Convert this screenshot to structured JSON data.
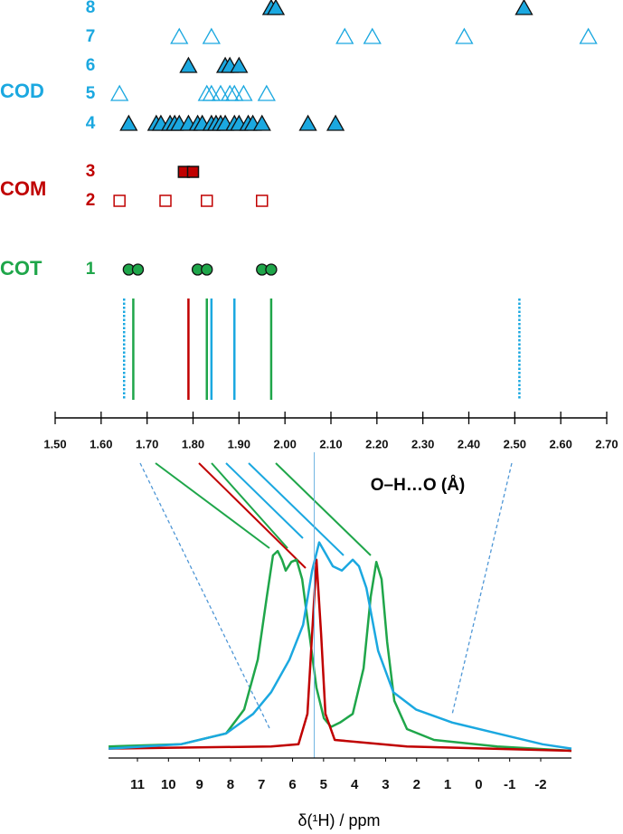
{
  "chart_data": [
    {
      "type": "scatter",
      "xlabel": "O–H…O (Å)",
      "xlim": [
        1.5,
        2.7
      ],
      "xticks": [
        {
          "value": 1.5,
          "label": "1.50"
        },
        {
          "value": 1.6,
          "label": "1.60"
        },
        {
          "value": 1.7,
          "label": "1.70"
        },
        {
          "value": 1.8,
          "label": "1.80"
        },
        {
          "value": 1.9,
          "label": "1.90"
        },
        {
          "value": 2.0,
          "label": "2.00"
        },
        {
          "value": 2.1,
          "label": "2.10"
        },
        {
          "value": 2.2,
          "label": "2.20"
        },
        {
          "value": 2.3,
          "label": "2.30"
        },
        {
          "value": 2.4,
          "label": "2.40"
        },
        {
          "value": 2.5,
          "label": "2.50"
        },
        {
          "value": 2.6,
          "label": "2.60"
        },
        {
          "value": 2.7,
          "label": "2.70"
        }
      ],
      "groups": [
        {
          "name": "COD",
          "color": "#1ba8e0",
          "marker": "triangle",
          "series": [
            {
              "name": "8",
              "filled": true,
              "values": [
                1.97,
                1.98,
                2.52
              ]
            },
            {
              "name": "7",
              "filled": false,
              "values": [
                1.77,
                1.84,
                2.13,
                2.19,
                2.39,
                2.66
              ]
            },
            {
              "name": "6",
              "filled": true,
              "values": [
                1.79,
                1.87,
                1.88,
                1.9
              ]
            },
            {
              "name": "5",
              "filled": false,
              "values": [
                1.64,
                1.83,
                1.84,
                1.86,
                1.88,
                1.89,
                1.91,
                1.96
              ]
            },
            {
              "name": "4",
              "filled": true,
              "values": [
                1.66,
                1.72,
                1.73,
                1.75,
                1.76,
                1.77,
                1.79,
                1.81,
                1.82,
                1.84,
                1.85,
                1.86,
                1.87,
                1.89,
                1.9,
                1.92,
                1.93,
                1.95,
                2.05,
                2.11
              ]
            }
          ]
        },
        {
          "name": "COM",
          "color": "#c00000",
          "marker": "square",
          "series": [
            {
              "name": "3",
              "filled": true,
              "values": [
                1.78,
                1.8
              ]
            },
            {
              "name": "2",
              "filled": false,
              "values": [
                1.64,
                1.74,
                1.83,
                1.95
              ]
            }
          ]
        },
        {
          "name": "COT",
          "color": "#1fa64a",
          "marker": "circle",
          "series": [
            {
              "name": "1",
              "filled": true,
              "values": [
                1.66,
                1.68,
                1.81,
                1.83,
                1.95,
                1.97
              ]
            }
          ]
        }
      ],
      "lines": [
        {
          "value": 1.65,
          "color": "#1ba8e0",
          "dashed": true
        },
        {
          "value": 1.67,
          "color": "#1fa64a",
          "dashed": false
        },
        {
          "value": 1.79,
          "color": "#c00000",
          "dashed": false
        },
        {
          "value": 1.83,
          "color": "#1fa64a",
          "dashed": false
        },
        {
          "value": 1.84,
          "color": "#1ba8e0",
          "dashed": false
        },
        {
          "value": 1.89,
          "color": "#1ba8e0",
          "dashed": false
        },
        {
          "value": 1.97,
          "color": "#1fa64a",
          "dashed": false
        },
        {
          "value": 2.51,
          "color": "#1ba8e0",
          "dashed": true
        }
      ]
    },
    {
      "type": "line",
      "xlabel": "δ(¹H) / ppm",
      "xlim": [
        12,
        -3
      ],
      "xticks": [
        11,
        10,
        9,
        8,
        7,
        6,
        5,
        4,
        3,
        2,
        1,
        0,
        -1,
        -2
      ],
      "ylim": [
        0,
        1
      ],
      "vline": 5.3,
      "vline_color": "#6fb3e0",
      "series": [
        {
          "color": "#1fa64a",
          "x": [
            11.93,
            9.6,
            8.14,
            7.56,
            7.12,
            6.83,
            6.63,
            6.48,
            6.34,
            6.22,
            6.04,
            5.87,
            5.69,
            5.46,
            5.23,
            4.99,
            4.76,
            4.47,
            4.06,
            3.71,
            3.48,
            3.3,
            3.13,
            2.95,
            2.72,
            2.31,
            1.44,
            -0.6,
            -2.99
          ],
          "values": [
            0.02,
            0.03,
            0.08,
            0.19,
            0.42,
            0.71,
            0.9,
            0.92,
            0.88,
            0.83,
            0.87,
            0.88,
            0.79,
            0.54,
            0.29,
            0.15,
            0.11,
            0.13,
            0.17,
            0.38,
            0.71,
            0.87,
            0.79,
            0.5,
            0.23,
            0.1,
            0.05,
            0.02,
            0.0
          ]
        },
        {
          "color": "#c00000",
          "x": [
            11.93,
            6.69,
            5.81,
            5.52,
            5.37,
            5.23,
            5.08,
            4.94,
            4.64,
            2.31,
            -2.99
          ],
          "values": [
            0.01,
            0.02,
            0.03,
            0.17,
            0.54,
            0.88,
            0.54,
            0.17,
            0.05,
            0.02,
            0.0
          ]
        },
        {
          "color": "#1ba8e0",
          "x": [
            11.93,
            9.6,
            8.14,
            7.27,
            6.69,
            6.1,
            5.66,
            5.37,
            5.14,
            4.94,
            4.7,
            4.41,
            4.06,
            3.86,
            3.62,
            3.24,
            2.75,
            2.02,
            0.85,
            -0.6,
            -2.06,
            -2.99
          ],
          "values": [
            0.01,
            0.03,
            0.08,
            0.17,
            0.27,
            0.42,
            0.58,
            0.83,
            0.96,
            0.91,
            0.85,
            0.83,
            0.88,
            0.85,
            0.75,
            0.46,
            0.27,
            0.19,
            0.13,
            0.08,
            0.03,
            0.01
          ]
        }
      ]
    }
  ]
}
